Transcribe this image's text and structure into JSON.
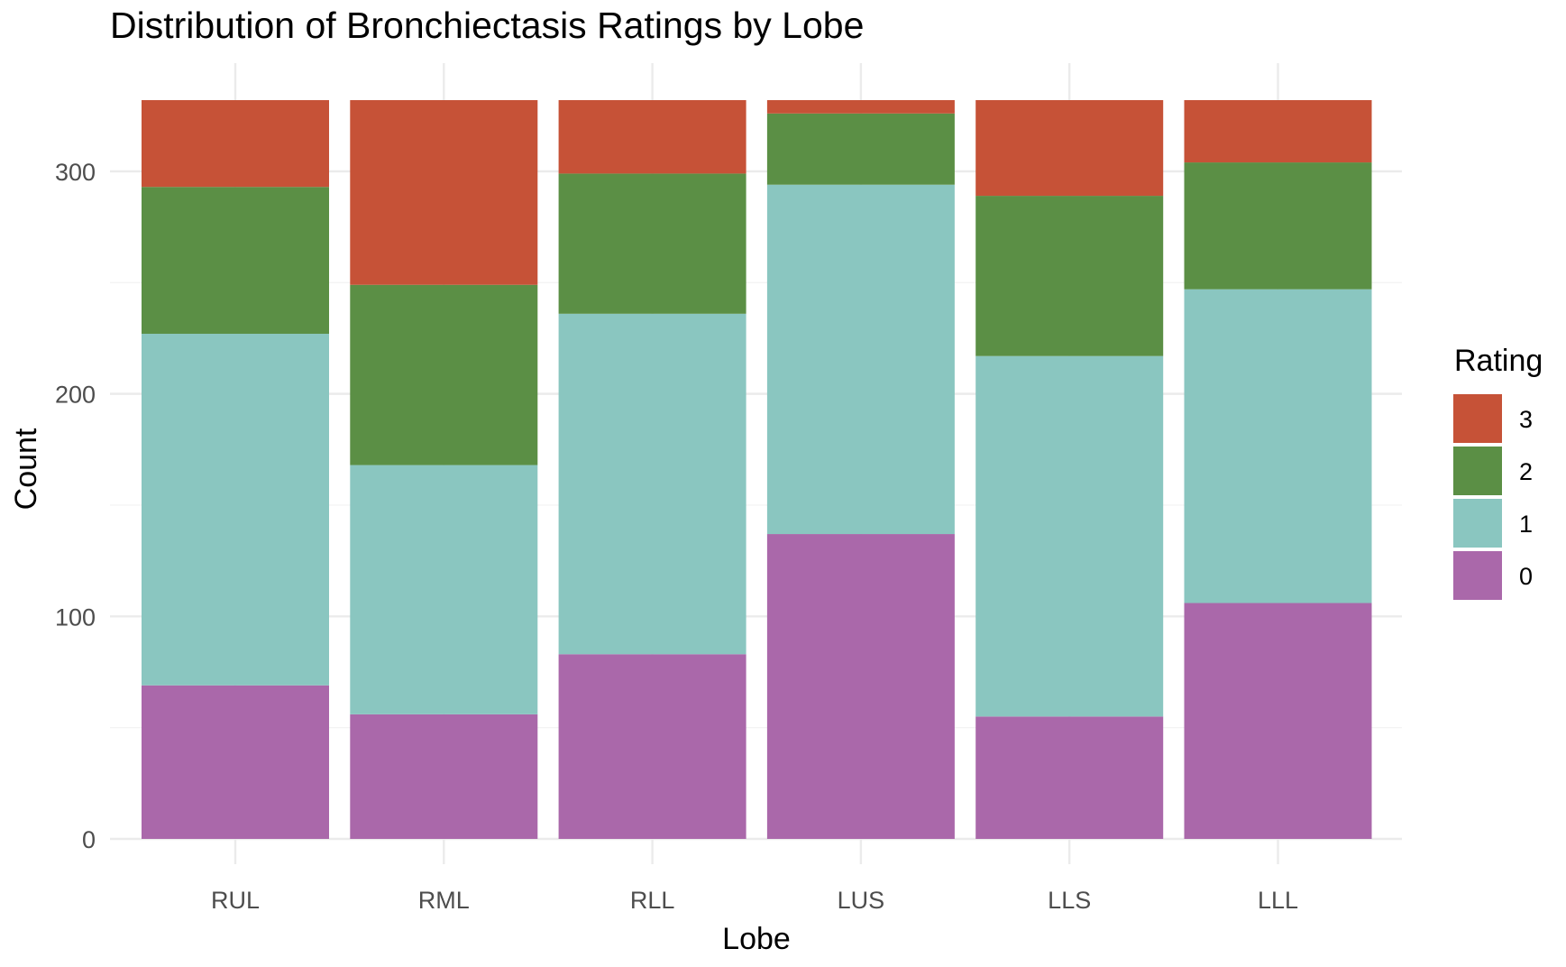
{
  "chart_data": {
    "type": "bar",
    "stacked": true,
    "title": "Distribution of Bronchiectasis Ratings by Lobe",
    "xlabel": "Lobe",
    "ylabel": "Count",
    "categories": [
      "RUL",
      "RML",
      "RLL",
      "LUS",
      "LLS",
      "LLL"
    ],
    "ylim": [
      0,
      332
    ],
    "yticks": [
      0,
      100,
      200,
      300
    ],
    "grid": true,
    "legend": {
      "title": "Rating",
      "placement": "right",
      "entries": [
        "3",
        "2",
        "1",
        "0"
      ]
    },
    "series": [
      {
        "name": "0",
        "color": "#AA68AA",
        "values": [
          69,
          56,
          83,
          137,
          55,
          106
        ]
      },
      {
        "name": "1",
        "color": "#8AC6C0",
        "values": [
          158,
          112,
          153,
          157,
          162,
          141
        ]
      },
      {
        "name": "2",
        "color": "#5B8F45",
        "values": [
          66,
          81,
          63,
          32,
          72,
          57
        ]
      },
      {
        "name": "3",
        "color": "#C65237",
        "values": [
          39,
          83,
          33,
          6,
          43,
          28
        ]
      }
    ]
  }
}
